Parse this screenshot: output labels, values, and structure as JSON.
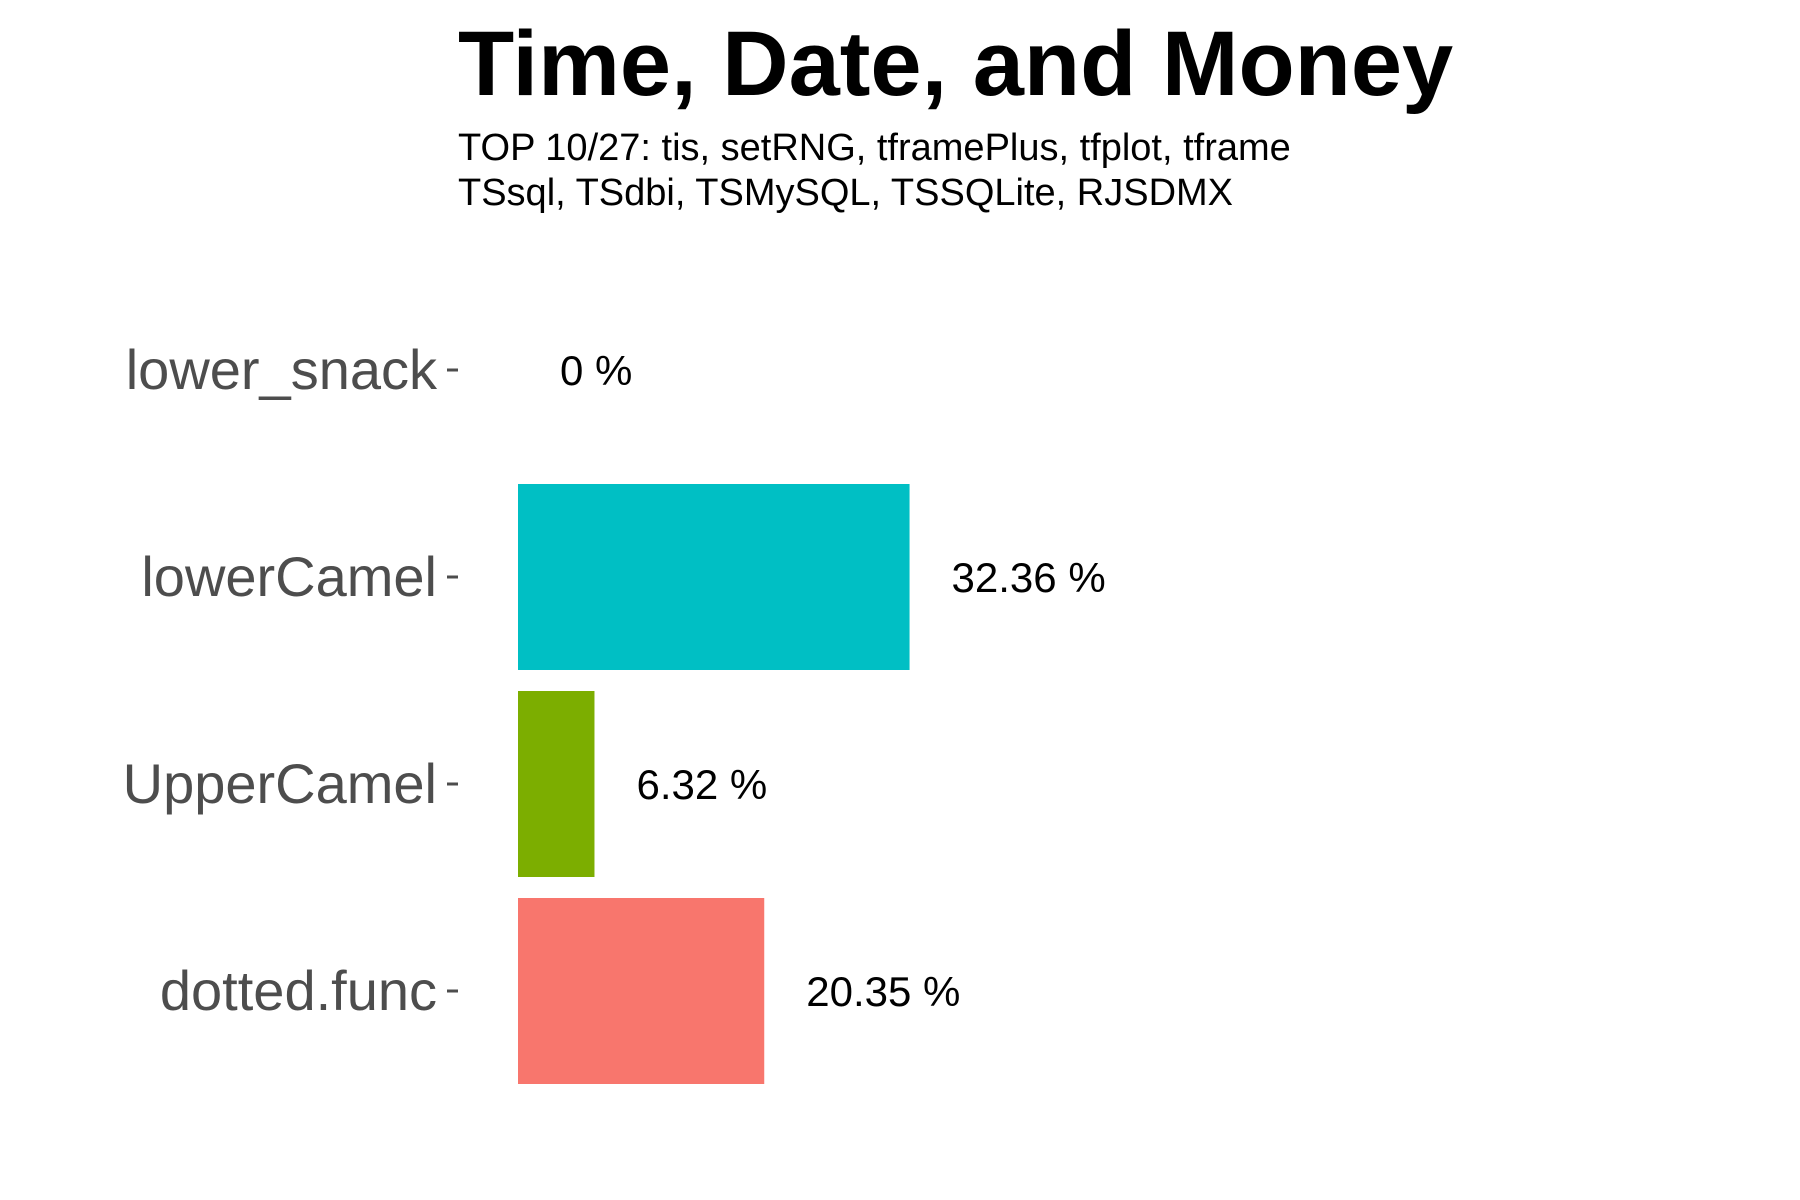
{
  "chart_data": {
    "type": "bar",
    "orientation": "horizontal",
    "title": "Time, Date, and Money",
    "subtitle_lines": [
      "TOP 10/27: tis, setRNG, tframePlus, tfplot, tframe",
      "TSsql, TSdbi, TSMySQL, TSSQLite, RJSDMX"
    ],
    "xlabel": "",
    "ylabel": "",
    "grid": false,
    "legend": "none",
    "xlim": [
      0,
      100
    ],
    "categories": [
      "lower_snack",
      "lowerCamel",
      "UpperCamel",
      "dotted.func"
    ],
    "values": [
      0,
      32.36,
      6.32,
      20.35
    ],
    "value_labels": [
      "0 %",
      "32.36 %",
      "6.32 %",
      "20.35 %"
    ],
    "colors": [
      "#C77CFF",
      "#00BFC4",
      "#7CAE00",
      "#F8766D"
    ]
  }
}
